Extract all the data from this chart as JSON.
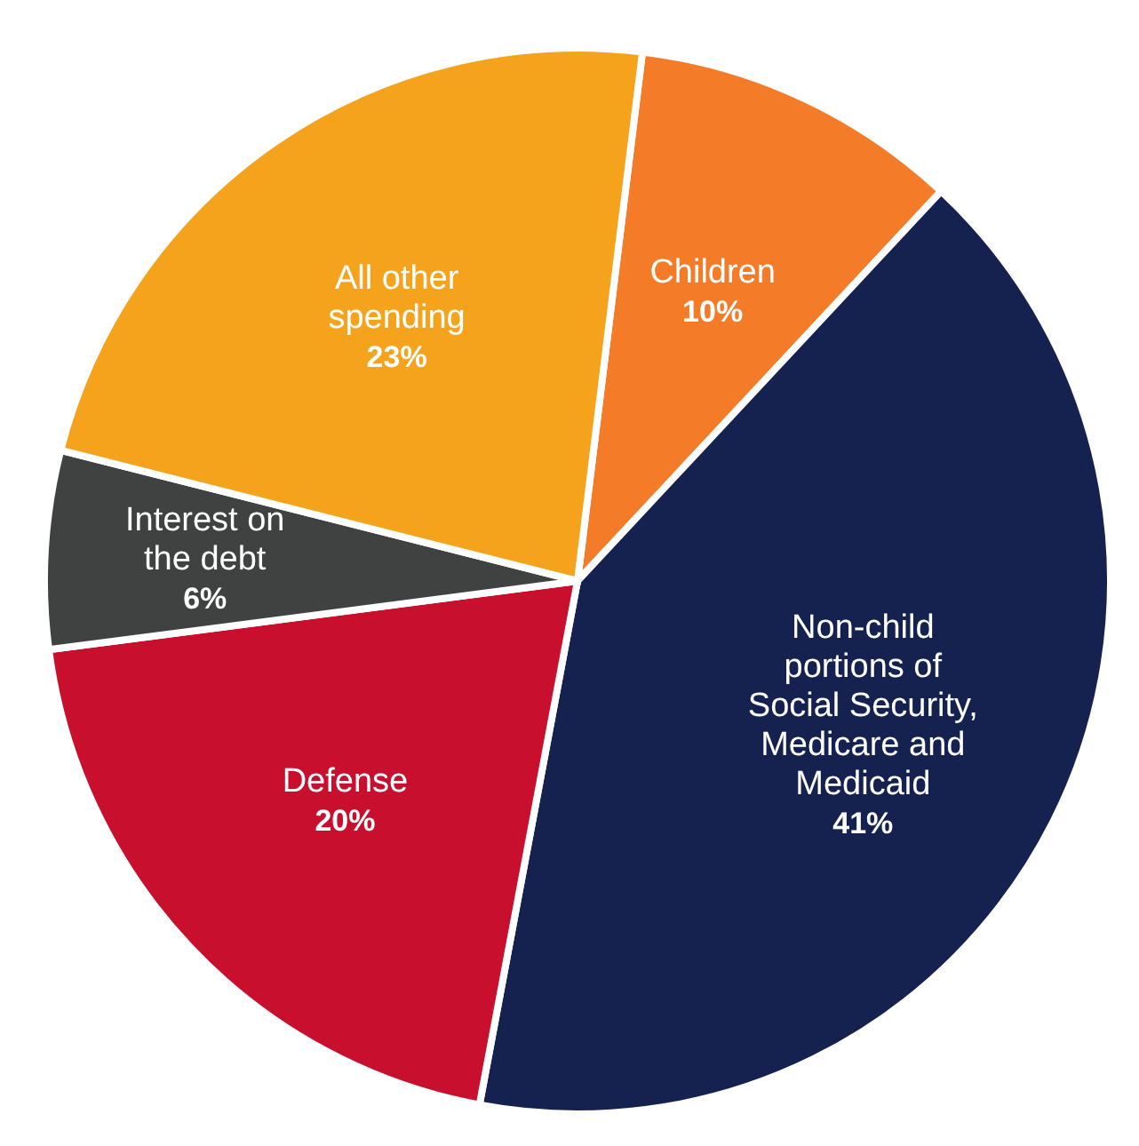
{
  "chart_data": {
    "type": "pie",
    "categories": [
      "Children",
      "Non-child portions of Social Security, Medicare and Medicaid",
      "Defense",
      "Interest on the debt",
      "All other spending"
    ],
    "values": [
      10,
      41,
      20,
      6,
      23
    ],
    "colors": [
      "#f47b27",
      "#15214f",
      "#c8102e",
      "#3f4240",
      "#f5a31d"
    ],
    "value_labels": [
      "10%",
      "41%",
      "20%",
      "6%",
      "23%"
    ]
  }
}
